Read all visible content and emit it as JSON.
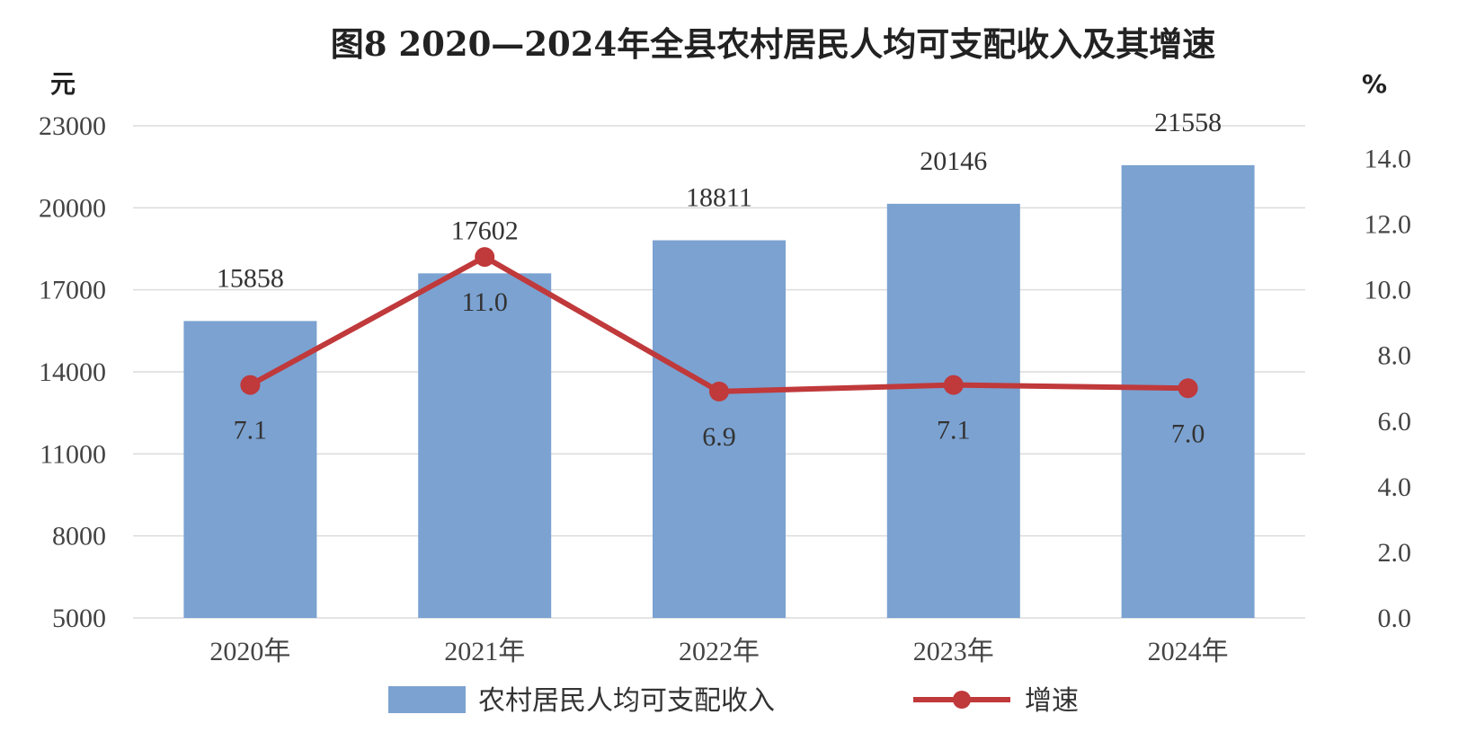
{
  "chart_data": {
    "type": "bar",
    "title": "图8  2020—2024年全县农村居民人均可支配收入及其增速",
    "categories": [
      "2020年",
      "2021年",
      "2022年",
      "2023年",
      "2024年"
    ],
    "series": [
      {
        "name": "农村居民人均可支配收入",
        "type": "bar",
        "axis": "left",
        "color": "#7ba2d1",
        "values": [
          15858,
          17602,
          18811,
          20146,
          21558
        ],
        "labels": [
          "15858",
          "17602",
          "18811",
          "20146",
          "21558"
        ]
      },
      {
        "name": "增速",
        "type": "line",
        "axis": "right",
        "color": "#c0393b",
        "values": [
          7.1,
          11.0,
          6.9,
          7.1,
          7.0
        ],
        "labels": [
          "7.1",
          "11.0",
          "6.9",
          "7.1",
          "7.0"
        ]
      }
    ],
    "y_left": {
      "unit": "元",
      "min": 5000,
      "max": 23000,
      "ticks": [
        "23000",
        "20000",
        "17000",
        "14000",
        "11000",
        "8000",
        "5000"
      ]
    },
    "y_right": {
      "unit": "%",
      "min": 0,
      "max": 15,
      "ticks": [
        "14.0",
        "12.0",
        "10.0",
        "8.0",
        "6.0",
        "4.0",
        "2.0",
        "0.0"
      ]
    },
    "grid": true,
    "legend": "bottom"
  }
}
